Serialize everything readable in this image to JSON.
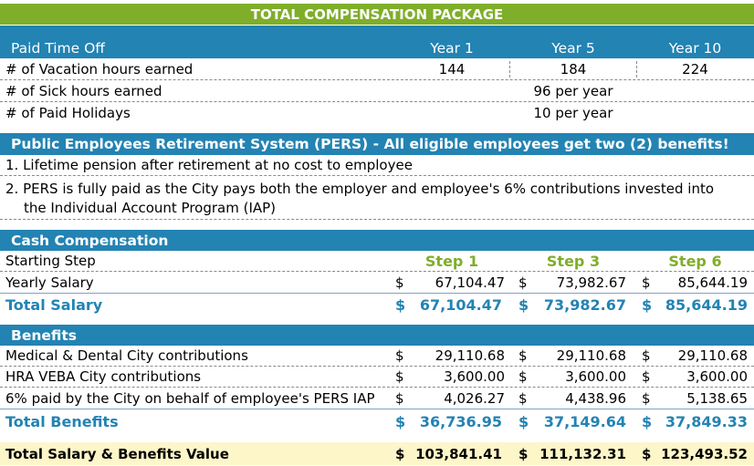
{
  "title": "TOTAL COMPENSATION PACKAGE",
  "pto": {
    "header": "Paid Time Off",
    "years": [
      "Year 1",
      "Year 5",
      "Year 10"
    ],
    "vacation_label": "# of Vacation hours earned",
    "vacation": [
      "144",
      "184",
      "224"
    ],
    "sick_label": "# of Sick hours earned",
    "sick_value": "96 per year",
    "holidays_label": "# of Paid Holidays",
    "holidays_value": "10 per year"
  },
  "pers": {
    "header": "Public Employees Retirement System (PERS) - All eligible employees get two (2) benefits!",
    "item1": "1. Lifetime pension after retirement at no cost to employee",
    "item2_line1": "2.  PERS is fully paid as the City pays both the employer and employee's 6% contributions invested into",
    "item2_line2": "the Individual Account Program (IAP)"
  },
  "cash": {
    "header": "Cash Compensation",
    "starting_step_label": "Starting Step",
    "steps": [
      "Step 1",
      "Step 3",
      "Step 6"
    ],
    "yearly_label": "Yearly Salary",
    "yearly": [
      "67,104.47",
      "73,982.67",
      "85,644.19"
    ],
    "total_label": "Total Salary",
    "total": [
      "67,104.47",
      "73,982.67",
      "85,644.19"
    ]
  },
  "benefits": {
    "header": "Benefits",
    "rows": [
      {
        "label": "Medical & Dental City contributions",
        "values": [
          "29,110.68",
          "29,110.68",
          "29,110.68"
        ]
      },
      {
        "label": "HRA VEBA City contributions",
        "values": [
          "3,600.00",
          "3,600.00",
          "3,600.00"
        ]
      },
      {
        "label": "6% paid by the City on behalf of employee's PERS IAP",
        "values": [
          "4,026.27",
          "4,438.96",
          "5,138.65"
        ]
      }
    ],
    "total_label": "Total Benefits",
    "total": [
      "36,736.95",
      "37,149.64",
      "37,849.33"
    ]
  },
  "grand": {
    "label": "Total Salary & Benefits Value",
    "values": [
      "103,841.41",
      "111,132.31",
      "123,493.52"
    ]
  },
  "currency": "$",
  "colors": {
    "green": "#7fae2a",
    "blue": "#2383b3",
    "yellow": "#fdf6c9"
  }
}
